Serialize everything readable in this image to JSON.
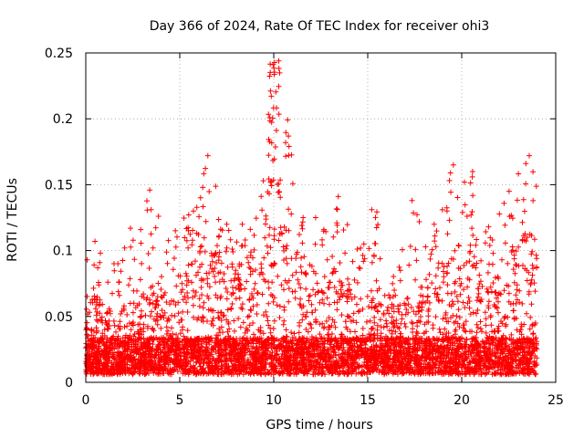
{
  "chart_data": {
    "type": "scatter",
    "title": "Day 366 of 2024, Rate Of TEC Index for receiver ohi3",
    "xlabel": "GPS time / hours",
    "ylabel": "ROTI / TECUs",
    "xlim": [
      0,
      25
    ],
    "ylim": [
      0,
      0.25
    ],
    "x_ticks": [
      0,
      5,
      10,
      15,
      20,
      25
    ],
    "x_tick_labels": [
      "0",
      "5",
      "10",
      "15",
      "20",
      "25"
    ],
    "y_ticks": [
      0,
      0.05,
      0.1,
      0.15,
      0.2,
      0.25
    ],
    "y_tick_labels": [
      "0",
      "0.05",
      "0.1",
      "0.15",
      "0.2",
      "0.25"
    ],
    "grid": true,
    "marker": "+",
    "series": [
      {
        "name": "ROTI",
        "color": "#ff0000",
        "data_window": [
          0.0,
          24.0
        ],
        "hourly_envelope": [
          {
            "hour": 0,
            "typical_max": 0.06,
            "peak": 0.107
          },
          {
            "hour": 1,
            "typical_max": 0.05,
            "peak": 0.09
          },
          {
            "hour": 2,
            "typical_max": 0.055,
            "peak": 0.117
          },
          {
            "hour": 3,
            "typical_max": 0.07,
            "peak": 0.146
          },
          {
            "hour": 4,
            "typical_max": 0.07,
            "peak": 0.115
          },
          {
            "hour": 5,
            "typical_max": 0.085,
            "peak": 0.13
          },
          {
            "hour": 6,
            "typical_max": 0.1,
            "peak": 0.172
          },
          {
            "hour": 7,
            "typical_max": 0.085,
            "peak": 0.12
          },
          {
            "hour": 8,
            "typical_max": 0.09,
            "peak": 0.12
          },
          {
            "hour": 9,
            "typical_max": 0.1,
            "peak": 0.153
          },
          {
            "hour": 10,
            "typical_max": 0.12,
            "peak": 0.244
          },
          {
            "hour": 11,
            "typical_max": 0.09,
            "peak": 0.125
          },
          {
            "hour": 12,
            "typical_max": 0.075,
            "peak": 0.125
          },
          {
            "hour": 13,
            "typical_max": 0.08,
            "peak": 0.141
          },
          {
            "hour": 14,
            "typical_max": 0.07,
            "peak": 0.105
          },
          {
            "hour": 15,
            "typical_max": 0.065,
            "peak": 0.131
          },
          {
            "hour": 16,
            "typical_max": 0.055,
            "peak": 0.085
          },
          {
            "hour": 17,
            "typical_max": 0.06,
            "peak": 0.138
          },
          {
            "hour": 18,
            "typical_max": 0.08,
            "peak": 0.12
          },
          {
            "hour": 19,
            "typical_max": 0.1,
            "peak": 0.165
          },
          {
            "hour": 20,
            "typical_max": 0.095,
            "peak": 0.16
          },
          {
            "hour": 21,
            "typical_max": 0.085,
            "peak": 0.118
          },
          {
            "hour": 22,
            "typical_max": 0.095,
            "peak": 0.145
          },
          {
            "hour": 23,
            "typical_max": 0.11,
            "peak": 0.172
          }
        ]
      }
    ]
  }
}
